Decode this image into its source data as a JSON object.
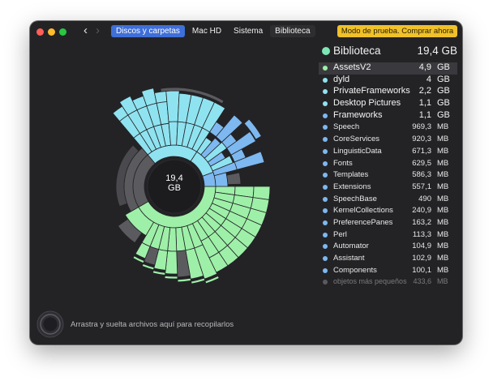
{
  "toolbar": {
    "back_icon": "chevron-left-icon",
    "forward_icon": "chevron-right-icon",
    "breadcrumbs": [
      "Discos y carpetas",
      "Mac HD",
      "Sistema",
      "Biblioteca"
    ],
    "buy_label": "Modo de prueba. Comprar ahora"
  },
  "chart": {
    "center_size": "19,4",
    "center_unit": "GB",
    "colors": {
      "cyan": "#8fe3f0",
      "blue": "#7db8f0",
      "green": "#9ef0a8",
      "gray": "#5b5b5f"
    }
  },
  "panel": {
    "title": "Biblioteca",
    "total": "19,4 GB",
    "items": [
      {
        "name": "AssetsV2",
        "size": "4,9",
        "unit": "GB",
        "color": "#9ef0a8"
      },
      {
        "name": "dyld",
        "size": "4",
        "unit": "GB",
        "color": "#8fe3f0"
      },
      {
        "name": "PrivateFrameworks",
        "size": "2,2",
        "unit": "GB",
        "color": "#8fe3f0"
      },
      {
        "name": "Desktop Pictures",
        "size": "1,1",
        "unit": "GB",
        "color": "#8fe3f0"
      },
      {
        "name": "Frameworks",
        "size": "1,1",
        "unit": "GB",
        "color": "#7db8f0"
      },
      {
        "name": "Speech",
        "size": "969,3",
        "unit": "MB",
        "color": "#7db8f0"
      },
      {
        "name": "CoreServices",
        "size": "920,3",
        "unit": "MB",
        "color": "#7db8f0"
      },
      {
        "name": "LinguisticData",
        "size": "671,3",
        "unit": "MB",
        "color": "#7db8f0"
      },
      {
        "name": "Fonts",
        "size": "629,5",
        "unit": "MB",
        "color": "#7db8f0"
      },
      {
        "name": "Templates",
        "size": "586,3",
        "unit": "MB",
        "color": "#7db8f0"
      },
      {
        "name": "Extensions",
        "size": "557,1",
        "unit": "MB",
        "color": "#7db8f0"
      },
      {
        "name": "SpeechBase",
        "size": "490",
        "unit": "MB",
        "color": "#7db8f0"
      },
      {
        "name": "KernelCollections",
        "size": "240,9",
        "unit": "MB",
        "color": "#7db8f0"
      },
      {
        "name": "PreferencePanes",
        "size": "163,2",
        "unit": "MB",
        "color": "#7db8f0"
      },
      {
        "name": "Perl",
        "size": "113,3",
        "unit": "MB",
        "color": "#7db8f0"
      },
      {
        "name": "Automator",
        "size": "104,9",
        "unit": "MB",
        "color": "#7db8f0"
      },
      {
        "name": "Assistant",
        "size": "102,9",
        "unit": "MB",
        "color": "#7db8f0"
      },
      {
        "name": "Components",
        "size": "100,1",
        "unit": "MB",
        "color": "#7db8f0"
      },
      {
        "name": "objetos más pequeños",
        "size": "433,6",
        "unit": "MB",
        "color": "#5b5b5f"
      }
    ]
  },
  "drop_zone": {
    "text": "Arrastra y suelta archivos aquí para recopilarlos"
  }
}
